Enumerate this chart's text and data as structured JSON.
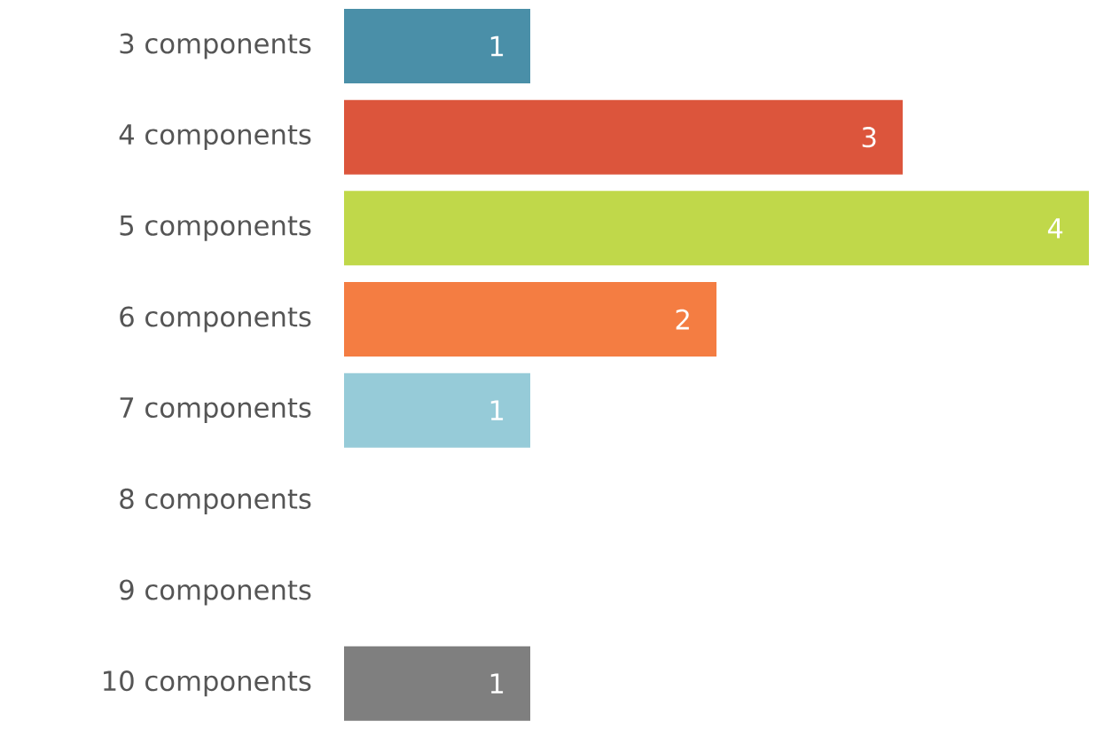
{
  "chart_data": {
    "type": "bar",
    "orientation": "horizontal",
    "categories": [
      "3 components",
      "4 components",
      "5 components",
      "6 components",
      "7 components",
      "8 components",
      "9 components",
      "10 components"
    ],
    "values": [
      1,
      3,
      4,
      2,
      1,
      0,
      0,
      1
    ],
    "colors": [
      "#4a8fa8",
      "#dc553c",
      "#c0d84a",
      "#f47d42",
      "#96cbd8",
      null,
      null,
      "#7f7f7f"
    ],
    "value_labels": [
      "1",
      "3",
      "4",
      "2",
      "1",
      null,
      null,
      "1"
    ],
    "xlim": [
      0,
      4
    ],
    "tick_labels": "y"
  }
}
